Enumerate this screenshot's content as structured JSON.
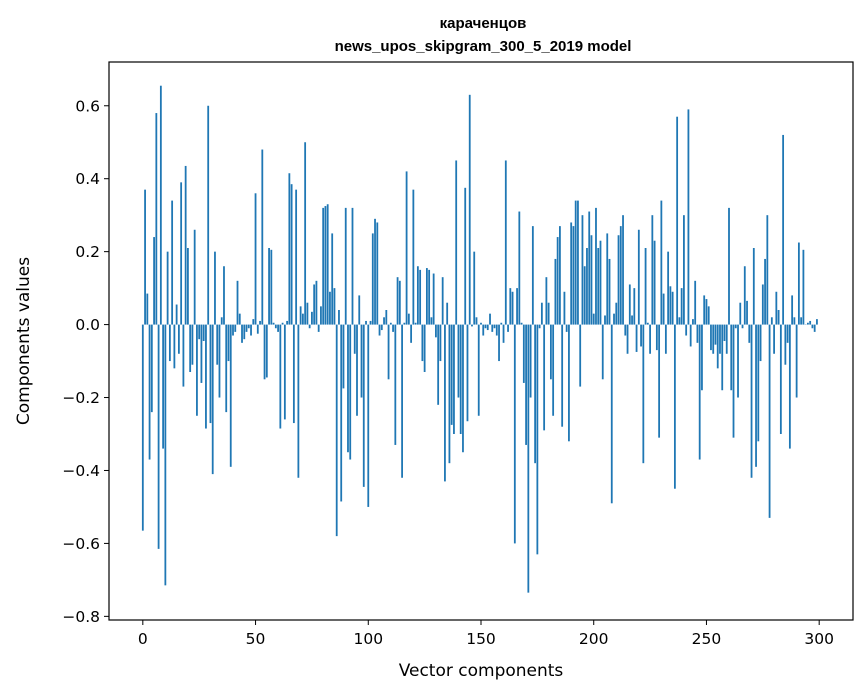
{
  "chart_data": {
    "type": "bar",
    "title": "караченцов",
    "subtitle": "news_upos_skipgram_300_5_2019 model",
    "xlabel": "Vector components",
    "ylabel": "Components values",
    "xlim": [
      -15,
      315
    ],
    "ylim": [
      -0.81,
      0.72
    ],
    "x_ticks": [
      0,
      50,
      100,
      150,
      200,
      250,
      300
    ],
    "x_tick_labels": [
      "0",
      "50",
      "100",
      "150",
      "200",
      "250",
      "300"
    ],
    "y_ticks": [
      -0.8,
      -0.6,
      -0.4,
      -0.2,
      0.0,
      0.2,
      0.4,
      0.6
    ],
    "y_tick_labels": [
      "−0.8",
      "−0.6",
      "−0.4",
      "−0.2",
      "0.0",
      "0.2",
      "0.4",
      "0.6"
    ],
    "bar_color": "#1f77b4",
    "grid": false,
    "values": [
      -0.565,
      0.37,
      0.085,
      -0.37,
      -0.24,
      0.24,
      0.58,
      -0.615,
      0.655,
      -0.34,
      -0.715,
      0.2,
      -0.1,
      0.34,
      -0.12,
      0.055,
      -0.08,
      0.39,
      -0.17,
      0.435,
      0.21,
      -0.13,
      -0.11,
      0.26,
      -0.25,
      -0.04,
      -0.16,
      -0.045,
      -0.285,
      0.6,
      -0.27,
      -0.41,
      0.2,
      -0.11,
      -0.2,
      0.02,
      0.16,
      -0.24,
      -0.1,
      -0.39,
      -0.03,
      -0.02,
      0.12,
      0.03,
      -0.05,
      -0.04,
      -0.02,
      -0.01,
      -0.03,
      0.015,
      0.36,
      -0.025,
      0.01,
      0.48,
      -0.15,
      -0.145,
      0.21,
      0.205,
      0.005,
      -0.01,
      -0.02,
      -0.285,
      0.005,
      -0.26,
      0.01,
      0.415,
      0.385,
      -0.27,
      0.37,
      -0.42,
      0.05,
      0.03,
      0.5,
      0.06,
      -0.01,
      0.035,
      0.11,
      0.12,
      -0.02,
      0.05,
      0.32,
      0.325,
      0.33,
      0.09,
      0.25,
      0.1,
      -0.58,
      0.04,
      -0.485,
      -0.175,
      0.32,
      -0.35,
      -0.37,
      0.32,
      -0.08,
      -0.25,
      0.08,
      -0.2,
      -0.445,
      0.01,
      -0.5,
      0.01,
      0.25,
      0.29,
      0.28,
      -0.03,
      -0.015,
      0.02,
      0.04,
      -0.15,
      0.005,
      -0.02,
      -0.33,
      0.13,
      0.12,
      -0.42,
      0.005,
      0.42,
      0.03,
      -0.05,
      0.37,
      0.005,
      0.16,
      0.15,
      -0.1,
      -0.13,
      0.155,
      0.15,
      0.02,
      0.14,
      -0.035,
      -0.22,
      -0.1,
      0.13,
      -0.43,
      0.06,
      -0.38,
      -0.275,
      -0.3,
      0.45,
      -0.2,
      -0.3,
      -0.35,
      0.375,
      -0.265,
      0.63,
      -0.005,
      0.2,
      0.02,
      -0.25,
      0.005,
      -0.03,
      -0.01,
      -0.015,
      0.03,
      -0.02,
      -0.01,
      -0.03,
      -0.1,
      0.005,
      -0.05,
      0.45,
      -0.02,
      0.1,
      0.09,
      -0.6,
      0.1,
      0.31,
      0.005,
      -0.16,
      -0.33,
      -0.735,
      -0.2,
      0.27,
      -0.38,
      -0.63,
      -0.01,
      0.06,
      -0.29,
      0.13,
      0.06,
      -0.15,
      -0.25,
      0.18,
      0.24,
      0.27,
      -0.28,
      0.09,
      -0.02,
      -0.32,
      0.28,
      0.27,
      0.34,
      0.34,
      -0.17,
      0.3,
      0.16,
      0.21,
      0.31,
      0.245,
      0.03,
      0.32,
      0.21,
      0.23,
      -0.15,
      0.025,
      0.25,
      0.18,
      -0.49,
      0.03,
      0.06,
      0.245,
      0.27,
      0.3,
      -0.03,
      -0.08,
      0.11,
      0.025,
      0.1,
      -0.075,
      0.26,
      -0.06,
      -0.38,
      0.21,
      0.005,
      -0.08,
      0.3,
      0.23,
      -0.07,
      -0.31,
      0.34,
      0.085,
      -0.08,
      0.2,
      0.105,
      0.09,
      -0.45,
      0.57,
      0.02,
      0.1,
      0.3,
      -0.03,
      0.59,
      -0.06,
      0.015,
      0.12,
      -0.05,
      -0.37,
      -0.18,
      0.08,
      0.07,
      0.05,
      -0.07,
      -0.08,
      -0.055,
      -0.12,
      -0.08,
      -0.18,
      -0.045,
      -0.08,
      0.32,
      -0.18,
      -0.31,
      -0.01,
      -0.2,
      0.06,
      -0.01,
      0.16,
      0.065,
      -0.05,
      -0.42,
      0.21,
      -0.39,
      -0.32,
      -0.1,
      0.11,
      0.18,
      0.3,
      -0.53,
      0.02,
      -0.08,
      0.09,
      0.04,
      -0.3,
      0.52,
      -0.11,
      -0.05,
      -0.34,
      0.08,
      0.02,
      -0.2,
      0.225,
      0.02,
      0.205,
      0.0,
      0.005,
      0.01,
      -0.01,
      -0.02,
      0.015
    ]
  }
}
